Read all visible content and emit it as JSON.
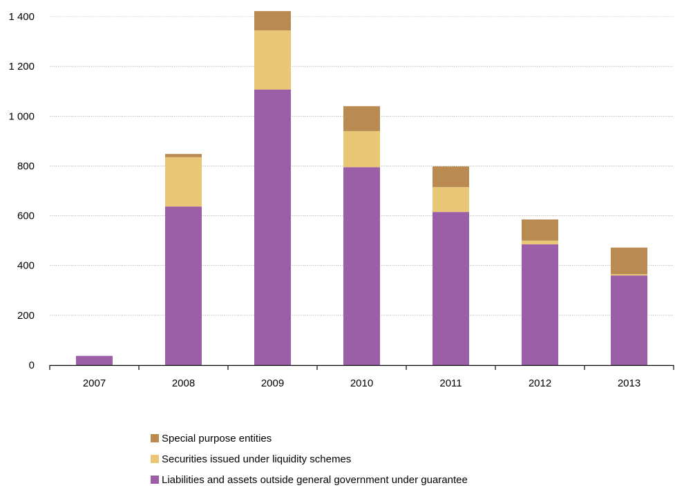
{
  "chart_data": {
    "type": "bar",
    "stacked": true,
    "categories": [
      "2007",
      "2008",
      "2009",
      "2010",
      "2011",
      "2012",
      "2013"
    ],
    "series": [
      {
        "name": "Liabilities and assets outside general government under guarantee",
        "color": "#9b5fa8",
        "values": [
          37,
          637,
          1107,
          795,
          615,
          485,
          360
        ]
      },
      {
        "name": "Securities issued under liquidity schemes",
        "color": "#e8c877",
        "values": [
          0,
          198,
          237,
          145,
          100,
          15,
          5
        ]
      },
      {
        "name": "Special purpose entities",
        "color": "#b98a51",
        "values": [
          0,
          13,
          78,
          100,
          83,
          85,
          107
        ]
      }
    ],
    "ylim": [
      0,
      1400
    ],
    "yticks": [
      0,
      200,
      400,
      600,
      800,
      1000,
      1200,
      1400
    ],
    "ytick_labels": [
      "0",
      "200",
      "400",
      "600",
      "800",
      "1 000",
      "1 200",
      "1 400"
    ],
    "grid": true,
    "legend_placement": "bottom",
    "legend_order": [
      "Special purpose entities",
      "Securities issued under liquidity schemes",
      "Liabilities and assets outside general government under guarantee"
    ]
  }
}
